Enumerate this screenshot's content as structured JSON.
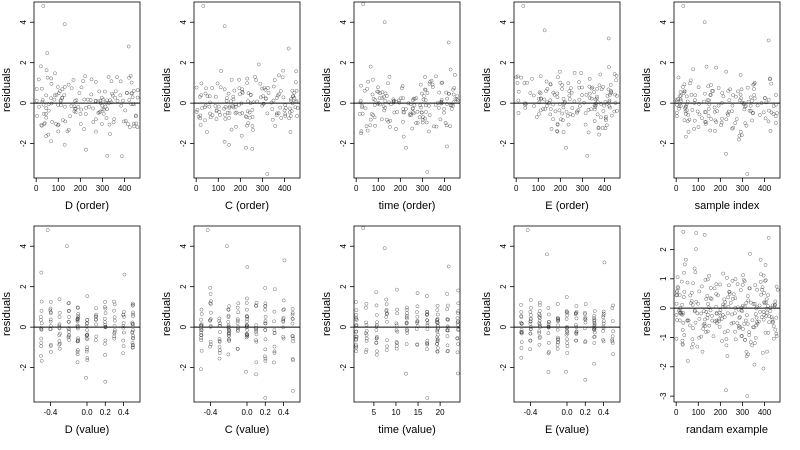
{
  "chart_data": [
    {
      "type": "scatter",
      "xlabel": "D (order)",
      "ylabel": "residuals",
      "xlim": [
        -10,
        470
      ],
      "ylim": [
        -3.7,
        5.0
      ],
      "xticks": [
        0,
        100,
        200,
        300,
        400
      ],
      "xtick_labels": [
        "0",
        "100",
        "200",
        "300",
        "400"
      ],
      "yticks": [
        -2,
        0,
        2,
        4
      ],
      "ytick_labels": [
        "-2",
        "0",
        "2",
        "4"
      ],
      "reference_line_y": 0,
      "points": {
        "x_min": 0,
        "x_max": 460,
        "n": 160,
        "spread": 1.0,
        "outlier_y": [
          4.8,
          3.9,
          -2.3,
          -2.6,
          2.8
        ]
      }
    },
    {
      "type": "scatter",
      "xlabel": "C (order)",
      "ylabel": "residuals",
      "xlim": [
        -10,
        470
      ],
      "ylim": [
        -3.7,
        5.0
      ],
      "xticks": [
        0,
        100,
        200,
        300,
        400
      ],
      "xtick_labels": [
        "0",
        "100",
        "200",
        "300",
        "400"
      ],
      "yticks": [
        -2,
        0,
        2,
        4
      ],
      "ytick_labels": [
        "-2",
        "0",
        "2",
        "4"
      ],
      "reference_line_y": 0,
      "points": {
        "x_min": 0,
        "x_max": 460,
        "n": 160,
        "spread": 1.0,
        "outlier_y": [
          4.8,
          3.8,
          -2.2,
          -3.5,
          2.7
        ]
      }
    },
    {
      "type": "scatter",
      "xlabel": "time (order)",
      "ylabel": "residuals",
      "xlim": [
        -10,
        470
      ],
      "ylim": [
        -3.7,
        5.0
      ],
      "xticks": [
        0,
        100,
        200,
        300,
        400
      ],
      "xtick_labels": [
        "0",
        "100",
        "200",
        "300",
        "400"
      ],
      "yticks": [
        -2,
        0,
        2,
        4
      ],
      "ytick_labels": [
        "-2",
        "0",
        "2",
        "4"
      ],
      "reference_line_y": 0,
      "points": {
        "x_min": 0,
        "x_max": 460,
        "n": 160,
        "spread": 1.0,
        "outlier_y": [
          4.9,
          4.0,
          -2.2,
          -3.4,
          3.0
        ]
      }
    },
    {
      "type": "scatter",
      "xlabel": "E (order)",
      "ylabel": "residuals",
      "xlim": [
        -10,
        470
      ],
      "ylim": [
        -3.7,
        5.0
      ],
      "xticks": [
        0,
        100,
        200,
        300,
        400
      ],
      "xtick_labels": [
        "0",
        "100",
        "200",
        "300",
        "400"
      ],
      "yticks": [
        -2,
        0,
        2,
        4
      ],
      "ytick_labels": [
        "-2",
        "0",
        "2",
        "4"
      ],
      "reference_line_y": 0,
      "points": {
        "x_min": 0,
        "x_max": 460,
        "n": 160,
        "spread": 1.0,
        "outlier_y": [
          4.8,
          3.6,
          -2.2,
          -2.6,
          3.2
        ]
      }
    },
    {
      "type": "scatter",
      "xlabel": "sample index",
      "ylabel": "residuals",
      "xlim": [
        -10,
        470
      ],
      "ylim": [
        -3.7,
        5.0
      ],
      "xticks": [
        0,
        100,
        200,
        300,
        400
      ],
      "xtick_labels": [
        "0",
        "100",
        "200",
        "300",
        "400"
      ],
      "yticks": [
        -2,
        0,
        2,
        4
      ],
      "ytick_labels": [
        "-2",
        "0",
        "2",
        "4"
      ],
      "reference_line_y": 0,
      "points": {
        "x_min": 0,
        "x_max": 460,
        "n": 160,
        "spread": 1.0,
        "outlier_y": [
          4.8,
          4.0,
          -2.5,
          -3.5,
          3.1
        ]
      }
    },
    {
      "type": "scatter",
      "xlabel": "D (value)",
      "ylabel": "residuals",
      "xlim": [
        -0.58,
        0.58
      ],
      "ylim": [
        -3.7,
        5.0
      ],
      "xticks": [
        -0.4,
        0.0,
        0.2,
        0.4
      ],
      "xtick_labels": [
        "-0.4",
        "0.0",
        "0.2",
        "0.4"
      ],
      "yticks": [
        -2,
        0,
        2,
        4
      ],
      "ytick_labels": [
        "-2",
        "0",
        "2",
        "4"
      ],
      "reference_line_y": 0,
      "points": {
        "x_min": -0.5,
        "x_max": 0.5,
        "n": 160,
        "spread": 1.0,
        "outlier_y": [
          4.8,
          4.0,
          -2.5,
          -2.7,
          2.6
        ]
      }
    },
    {
      "type": "scatter",
      "xlabel": "C (value)",
      "ylabel": "residuals",
      "xlim": [
        -0.58,
        0.58
      ],
      "ylim": [
        -3.7,
        5.0
      ],
      "xticks": [
        -0.4,
        0.0,
        0.2,
        0.4
      ],
      "xtick_labels": [
        "-0.4",
        "0.0",
        "0.2",
        "0.4"
      ],
      "yticks": [
        -2,
        0,
        2,
        4
      ],
      "ytick_labels": [
        "-2",
        "0",
        "2",
        "4"
      ],
      "reference_line_y": 0,
      "points": {
        "x_min": -0.5,
        "x_max": 0.5,
        "n": 160,
        "spread": 1.0,
        "outlier_y": [
          4.8,
          4.0,
          -2.2,
          -3.5,
          3.3
        ]
      }
    },
    {
      "type": "scatter",
      "xlabel": "time (value)",
      "ylabel": "residuals",
      "xlim": [
        0.5,
        24.5
      ],
      "ylim": [
        -3.7,
        5.0
      ],
      "xticks": [
        5,
        10,
        15,
        20
      ],
      "xtick_labels": [
        "5",
        "10",
        "15",
        "20"
      ],
      "yticks": [
        -2,
        0,
        2,
        4
      ],
      "ytick_labels": [
        "-2",
        "0",
        "2",
        "4"
      ],
      "reference_line_y": 0,
      "points": {
        "x_min": 1,
        "x_max": 24,
        "n": 160,
        "spread": 1.0,
        "outlier_y": [
          4.9,
          3.9,
          -2.3,
          -3.5,
          3.0
        ]
      }
    },
    {
      "type": "scatter",
      "xlabel": "E (value)",
      "ylabel": "residuals",
      "xlim": [
        -0.58,
        0.58
      ],
      "ylim": [
        -3.7,
        5.0
      ],
      "xticks": [
        -0.4,
        0.0,
        0.2,
        0.4
      ],
      "xtick_labels": [
        "-0.4",
        "0.0",
        "0.2",
        "0.4"
      ],
      "yticks": [
        -2,
        0,
        2,
        4
      ],
      "ytick_labels": [
        "-2",
        "0",
        "2",
        "4"
      ],
      "reference_line_y": 0,
      "points": {
        "x_min": -0.5,
        "x_max": 0.5,
        "n": 160,
        "spread": 1.0,
        "outlier_y": [
          4.8,
          3.6,
          -2.2,
          -2.6,
          3.2
        ]
      }
    },
    {
      "type": "scatter",
      "xlabel": "randam example",
      "ylabel": "residuals",
      "xlim": [
        -10,
        470
      ],
      "ylim": [
        -3.2,
        2.8
      ],
      "xticks": [
        0,
        100,
        200,
        300,
        400
      ],
      "xtick_labels": [
        "0",
        "100",
        "200",
        "300",
        "400"
      ],
      "yticks": [
        -3,
        -2,
        -1,
        0,
        1,
        2
      ],
      "ytick_labels": [
        "-3",
        "-2",
        "-1",
        "0",
        "1",
        "2"
      ],
      "reference_line_y": 0,
      "points": {
        "x_min": 0,
        "x_max": 460,
        "n": 260,
        "spread": 1.0,
        "outlier_y": [
          2.6,
          2.5,
          -2.8,
          -3.0,
          2.4
        ]
      }
    }
  ]
}
